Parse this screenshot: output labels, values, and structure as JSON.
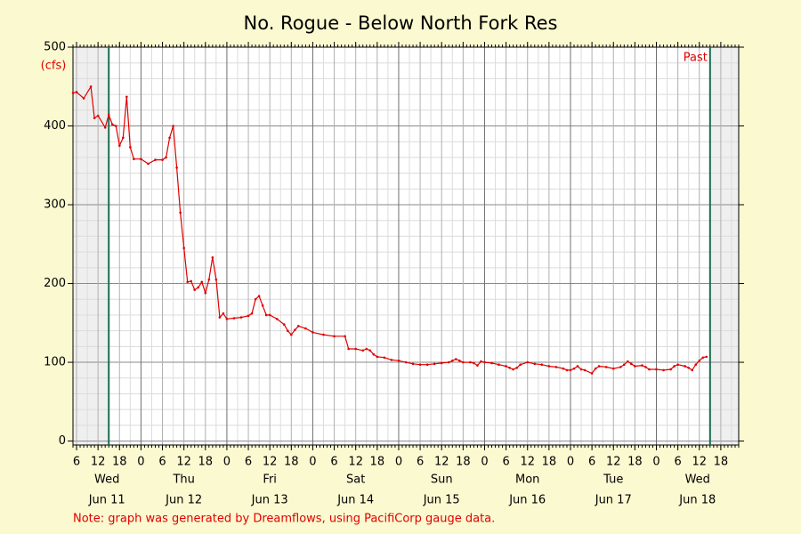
{
  "chart_data": {
    "type": "line",
    "title": "No. Rogue - Below North Fork Res",
    "y_unit": "(cfs)",
    "note": "Note: graph was generated by Dreamflows, using PacifiCorp gauge data.",
    "annotation": "Past",
    "data_window": [
      "Jun 11 15:00",
      "Jun 18 15:00"
    ],
    "window_color": "#1a6e50",
    "xlim": [
      "Jun 11 05:00",
      "Jun 18 23:00"
    ],
    "ylim": [
      -5,
      500
    ],
    "yticks": [
      0,
      100,
      200,
      300,
      400,
      500
    ],
    "xticks": [
      {
        "value": "Jun 11 06:00",
        "label": "6"
      },
      {
        "value": "Jun 11 12:00",
        "label": "12"
      },
      {
        "value": "Jun 11 18:00",
        "label": "18"
      },
      {
        "value": "Jun 12 00:00",
        "label": "0"
      },
      {
        "value": "Jun 12 06:00",
        "label": "6"
      },
      {
        "value": "Jun 12 12:00",
        "label": "12"
      },
      {
        "value": "Jun 12 18:00",
        "label": "18"
      },
      {
        "value": "Jun 13 00:00",
        "label": "0"
      },
      {
        "value": "Jun 13 06:00",
        "label": "6"
      },
      {
        "value": "Jun 13 12:00",
        "label": "12"
      },
      {
        "value": "Jun 13 18:00",
        "label": "18"
      },
      {
        "value": "Jun 14 00:00",
        "label": "0"
      },
      {
        "value": "Jun 14 06:00",
        "label": "6"
      },
      {
        "value": "Jun 14 12:00",
        "label": "12"
      },
      {
        "value": "Jun 14 18:00",
        "label": "18"
      },
      {
        "value": "Jun 15 00:00",
        "label": "0"
      },
      {
        "value": "Jun 15 06:00",
        "label": "6"
      },
      {
        "value": "Jun 15 12:00",
        "label": "12"
      },
      {
        "value": "Jun 15 18:00",
        "label": "18"
      },
      {
        "value": "Jun 16 00:00",
        "label": "0"
      },
      {
        "value": "Jun 16 06:00",
        "label": "6"
      },
      {
        "value": "Jun 16 12:00",
        "label": "12"
      },
      {
        "value": "Jun 16 18:00",
        "label": "18"
      },
      {
        "value": "Jun 17 00:00",
        "label": "0"
      },
      {
        "value": "Jun 17 06:00",
        "label": "6"
      },
      {
        "value": "Jun 17 12:00",
        "label": "12"
      },
      {
        "value": "Jun 17 18:00",
        "label": "18"
      },
      {
        "value": "Jun 18 00:00",
        "label": "0"
      },
      {
        "value": "Jun 18 06:00",
        "label": "6"
      },
      {
        "value": "Jun 18 12:00",
        "label": "12"
      },
      {
        "value": "Jun 18 18:00",
        "label": "18"
      }
    ],
    "day_labels": [
      {
        "weekday": "Wed",
        "date": "Jun 11"
      },
      {
        "weekday": "Thu",
        "date": "Jun 12"
      },
      {
        "weekday": "Fri",
        "date": "Jun 13"
      },
      {
        "weekday": "Sat",
        "date": "Jun 14"
      },
      {
        "weekday": "Sun",
        "date": "Jun 15"
      },
      {
        "weekday": "Mon",
        "date": "Jun 16"
      },
      {
        "weekday": "Tue",
        "date": "Jun 17"
      },
      {
        "weekday": "Wed",
        "date": "Jun 18"
      }
    ],
    "grid": true,
    "x": [
      "Jun 11 05:00",
      "Jun 11 06:00",
      "Jun 11 08:00",
      "Jun 11 10:00",
      "Jun 11 11:00",
      "Jun 11 12:00",
      "Jun 11 14:00",
      "Jun 11 15:00",
      "Jun 11 16:00",
      "Jun 11 17:00",
      "Jun 11 18:00",
      "Jun 11 19:00",
      "Jun 11 20:00",
      "Jun 11 21:00",
      "Jun 11 22:00",
      "Jun 12 00:00",
      "Jun 12 02:00",
      "Jun 12 04:00",
      "Jun 12 06:00",
      "Jun 12 07:00",
      "Jun 12 08:00",
      "Jun 12 09:00",
      "Jun 12 10:00",
      "Jun 12 11:00",
      "Jun 12 12:00",
      "Jun 12 13:00",
      "Jun 12 14:00",
      "Jun 12 15:00",
      "Jun 12 16:00",
      "Jun 12 17:00",
      "Jun 12 18:00",
      "Jun 12 19:00",
      "Jun 12 20:00",
      "Jun 12 21:00",
      "Jun 12 22:00",
      "Jun 12 23:00",
      "Jun 13 00:00",
      "Jun 13 02:00",
      "Jun 13 04:00",
      "Jun 13 06:00",
      "Jun 13 07:00",
      "Jun 13 08:00",
      "Jun 13 09:00",
      "Jun 13 10:00",
      "Jun 13 11:00",
      "Jun 13 12:00",
      "Jun 13 14:00",
      "Jun 13 16:00",
      "Jun 13 17:00",
      "Jun 13 18:00",
      "Jun 13 19:00",
      "Jun 13 20:00",
      "Jun 13 22:00",
      "Jun 14 00:00",
      "Jun 14 03:00",
      "Jun 14 06:00",
      "Jun 14 09:00",
      "Jun 14 10:00",
      "Jun 14 12:00",
      "Jun 14 14:00",
      "Jun 14 15:00",
      "Jun 14 16:00",
      "Jun 14 17:00",
      "Jun 14 18:00",
      "Jun 14 20:00",
      "Jun 14 22:00",
      "Jun 15 00:00",
      "Jun 15 02:00",
      "Jun 15 04:00",
      "Jun 15 06:00",
      "Jun 15 08:00",
      "Jun 15 10:00",
      "Jun 15 12:00",
      "Jun 15 14:00",
      "Jun 15 15:00",
      "Jun 15 16:00",
      "Jun 15 17:00",
      "Jun 15 18:00",
      "Jun 15 20:00",
      "Jun 15 21:00",
      "Jun 15 22:00",
      "Jun 15 23:00",
      "Jun 16 00:00",
      "Jun 16 02:00",
      "Jun 16 04:00",
      "Jun 16 06:00",
      "Jun 16 07:00",
      "Jun 16 08:00",
      "Jun 16 09:00",
      "Jun 16 10:00",
      "Jun 16 12:00",
      "Jun 16 14:00",
      "Jun 16 16:00",
      "Jun 16 18:00",
      "Jun 16 20:00",
      "Jun 16 22:00",
      "Jun 16 23:00",
      "Jun 17 00:00",
      "Jun 17 01:00",
      "Jun 17 02:00",
      "Jun 17 03:00",
      "Jun 17 04:00",
      "Jun 17 06:00",
      "Jun 17 07:00",
      "Jun 17 08:00",
      "Jun 17 10:00",
      "Jun 17 12:00",
      "Jun 17 14:00",
      "Jun 17 15:00",
      "Jun 17 16:00",
      "Jun 17 17:00",
      "Jun 17 18:00",
      "Jun 17 20:00",
      "Jun 17 21:00",
      "Jun 17 22:00",
      "Jun 18 00:00",
      "Jun 18 02:00",
      "Jun 18 04:00",
      "Jun 18 05:00",
      "Jun 18 06:00",
      "Jun 18 08:00",
      "Jun 18 09:00",
      "Jun 18 10:00",
      "Jun 18 11:00",
      "Jun 18 12:00",
      "Jun 18 13:00",
      "Jun 18 14:00"
    ],
    "series": [
      {
        "name": "Flow",
        "color": "#e00000",
        "values": [
          442,
          443,
          435,
          450,
          410,
          413,
          398,
          414,
          402,
          400,
          375,
          385,
          437,
          373,
          358,
          358,
          352,
          357,
          357,
          360,
          385,
          400,
          347,
          290,
          245,
          202,
          203,
          192,
          195,
          202,
          188,
          205,
          233,
          205,
          157,
          162,
          155,
          156,
          157,
          159,
          162,
          180,
          184,
          172,
          160,
          160,
          155,
          148,
          140,
          135,
          141,
          146,
          143,
          138,
          135,
          133,
          133,
          117,
          117,
          115,
          117,
          115,
          110,
          107,
          106,
          103,
          102,
          100,
          98,
          97,
          97,
          98,
          99,
          100,
          102,
          104,
          102,
          100,
          100,
          99,
          96,
          101,
          100,
          99,
          97,
          95,
          93,
          91,
          93,
          97,
          100,
          98,
          97,
          95,
          94,
          92,
          90,
          90,
          92,
          95,
          91,
          90,
          86,
          92,
          95,
          94,
          92,
          94,
          97,
          101,
          98,
          95,
          96,
          94,
          91,
          91,
          90,
          91,
          95,
          97,
          95,
          93,
          90,
          97,
          102,
          106,
          107
        ]
      }
    ]
  }
}
